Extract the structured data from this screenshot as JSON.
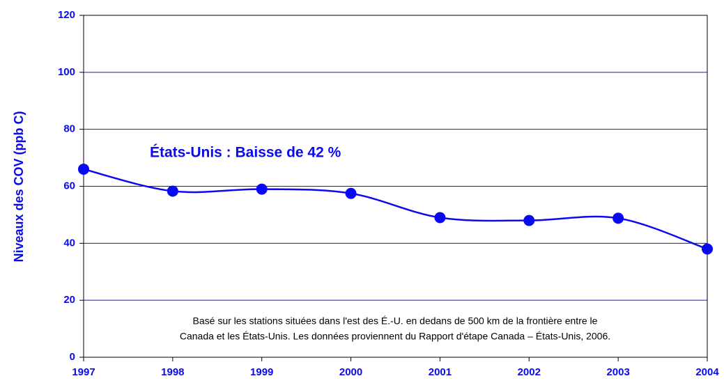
{
  "chart_data": {
    "type": "line",
    "ylabel": "Niveaux des COV (ppb C)",
    "annotation": "États-Unis :  Baisse de 42 %",
    "note": [
      "Basé sur les stations situées dans l'est des É.-U. en dedans de 500 km de la frontière entre le",
      "Canada et les États-Unis.  Les données proviennent du Rapport d'étape Canada – États-Unis, 2006."
    ],
    "categories": [
      "1997",
      "1998",
      "1999",
      "2000",
      "2001",
      "2002",
      "2003",
      "2004"
    ],
    "series": [
      {
        "name": "États-Unis",
        "color": "#0a0af0",
        "values": [
          66,
          58.3,
          59,
          57.5,
          49,
          48,
          48.8,
          38
        ]
      }
    ],
    "ylim": [
      0,
      120
    ],
    "yticks": [
      0,
      20,
      40,
      60,
      80,
      100,
      120
    ],
    "grid": true,
    "smooth": true
  }
}
